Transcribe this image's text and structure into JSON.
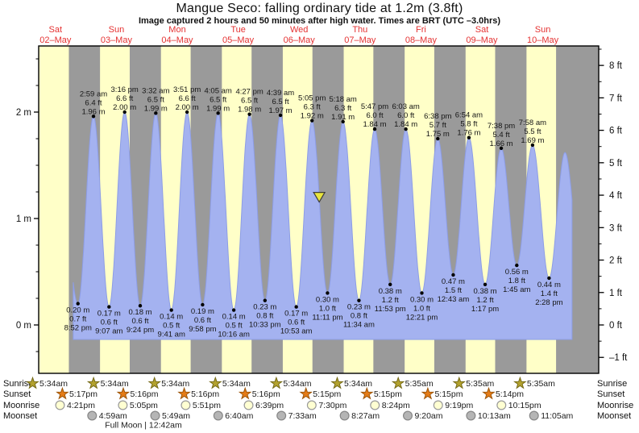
{
  "title": "Mangue Seco: falling  ordinary tide at 1.2m (3.8ft)",
  "subtitle": "Image captured 2 hours and 50 minutes after high water. Times are BRT (UTC –3.0hrs)",
  "colors": {
    "day_band": "#ffffc8",
    "night_band": "#9a9a9a",
    "tide_fill": "#a4b2f0",
    "tide_edge": "#8d9de6",
    "date_red": "#e53232",
    "sunrise_star": "#b3a22e",
    "sunrise_star_edge": "#756a18",
    "sunset_star": "#e57c17",
    "sunset_star_edge": "#9c5509",
    "moonrise_fill": "#ffffd2",
    "moonrise_edge": "#9a9a9a",
    "moonset_fill": "#b5b5b5",
    "moonset_edge": "#878787",
    "marker_fill": "#e9e53c",
    "marker_edge": "#3c3c3c"
  },
  "chart_data": {
    "type": "area",
    "title": "Mangue Seco: falling  ordinary tide at 1.2m (3.8ft)",
    "ylabel_left": "meters",
    "ylabel_right": "feet",
    "ylim_m": [
      -0.45,
      2.62
    ],
    "grid": false,
    "y_axis_m": [
      {
        "v": 0,
        "label": "0 m"
      },
      {
        "v": 1,
        "label": "1 m"
      },
      {
        "v": 2,
        "label": "2 m"
      }
    ],
    "y_axis_ft": [
      {
        "v": -1,
        "label": "–1 ft"
      },
      {
        "v": 0,
        "label": "0 ft"
      },
      {
        "v": 1,
        "label": "1 ft"
      },
      {
        "v": 2,
        "label": "2 ft"
      },
      {
        "v": 3,
        "label": "3 ft"
      },
      {
        "v": 4,
        "label": "4 ft"
      },
      {
        "v": 5,
        "label": "5 ft"
      },
      {
        "v": 6,
        "label": "6 ft"
      },
      {
        "v": 7,
        "label": "7 ft"
      },
      {
        "v": 8,
        "label": "8 ft"
      }
    ],
    "days": [
      {
        "dow": "Sat",
        "date": "02–May",
        "sr": 5.567,
        "ss": 17.283
      },
      {
        "dow": "Sun",
        "date": "03–May",
        "sr": 5.567,
        "ss": 17.267
      },
      {
        "dow": "Mon",
        "date": "04–May",
        "sr": 5.567,
        "ss": 17.267
      },
      {
        "dow": "Tue",
        "date": "05–May",
        "sr": 5.567,
        "ss": 17.267
      },
      {
        "dow": "Wed",
        "date": "06–May",
        "sr": 5.567,
        "ss": 17.25
      },
      {
        "dow": "Thu",
        "date": "07–May",
        "sr": 5.567,
        "ss": 17.25
      },
      {
        "dow": "Fri",
        "date": "08–May",
        "sr": 5.583,
        "ss": 17.25
      },
      {
        "dow": "Sat",
        "date": "09–May",
        "sr": 5.583,
        "ss": 17.233
      },
      {
        "dow": "Sun",
        "date": "10–May",
        "sr": 5.583,
        "ss": 17.233
      }
    ],
    "tides": [
      {
        "kind": "low",
        "day": 0,
        "hour": 20.867,
        "time": "8:52 pm",
        "ft": "0.7 ft",
        "m": "0.20 m",
        "v": 0.2
      },
      {
        "kind": "high",
        "day": 1,
        "hour": 2.983,
        "time": "2:59 am",
        "ft": "6.4 ft",
        "m": "1.96 m",
        "v": 1.96
      },
      {
        "kind": "low",
        "day": 1,
        "hour": 9.117,
        "time": "9:07 am",
        "ft": "0.6 ft",
        "m": "0.17 m",
        "v": 0.17
      },
      {
        "kind": "high",
        "day": 1,
        "hour": 15.267,
        "time": "3:16 pm",
        "ft": "6.6 ft",
        "m": "2.00 m",
        "v": 2.0
      },
      {
        "kind": "low",
        "day": 1,
        "hour": 21.4,
        "time": "9:24 pm",
        "ft": "0.6 ft",
        "m": "0.18 m",
        "v": 0.18
      },
      {
        "kind": "high",
        "day": 2,
        "hour": 3.533,
        "time": "3:32 am",
        "ft": "6.5 ft",
        "m": "1.99 m",
        "v": 1.99
      },
      {
        "kind": "low",
        "day": 2,
        "hour": 9.683,
        "time": "9:41 am",
        "ft": "0.5 ft",
        "m": "0.14 m",
        "v": 0.14
      },
      {
        "kind": "high",
        "day": 2,
        "hour": 15.85,
        "time": "3:51 pm",
        "ft": "6.6 ft",
        "m": "2.00 m",
        "v": 2.0
      },
      {
        "kind": "low",
        "day": 2,
        "hour": 21.967,
        "time": "9:58 pm",
        "ft": "0.6 ft",
        "m": "0.19 m",
        "v": 0.19
      },
      {
        "kind": "high",
        "day": 3,
        "hour": 4.083,
        "time": "4:05 am",
        "ft": "6.5 ft",
        "m": "1.99 m",
        "v": 1.99
      },
      {
        "kind": "low",
        "day": 3,
        "hour": 10.267,
        "time": "10:16 am",
        "ft": "0.5 ft",
        "m": "0.14 m",
        "v": 0.14
      },
      {
        "kind": "high",
        "day": 3,
        "hour": 16.45,
        "time": "4:27 pm",
        "ft": "6.5 ft",
        "m": "1.98 m",
        "v": 1.98
      },
      {
        "kind": "low",
        "day": 3,
        "hour": 22.55,
        "time": "10:33 pm",
        "ft": "0.8 ft",
        "m": "0.23 m",
        "v": 0.23
      },
      {
        "kind": "high",
        "day": 4,
        "hour": 4.65,
        "time": "4:39 am",
        "ft": "6.5 ft",
        "m": "1.97 m",
        "v": 1.97
      },
      {
        "kind": "low",
        "day": 4,
        "hour": 10.883,
        "time": "10:53 am",
        "ft": "0.6 ft",
        "m": "0.17 m",
        "v": 0.17
      },
      {
        "kind": "high",
        "day": 4,
        "hour": 17.083,
        "time": "5:05 pm",
        "ft": "6.3 ft",
        "m": "1.92 m",
        "v": 1.92
      },
      {
        "kind": "low",
        "day": 4,
        "hour": 23.183,
        "time": "11:11 pm",
        "ft": "1.0 ft",
        "m": "0.30 m",
        "v": 0.3
      },
      {
        "kind": "high",
        "day": 5,
        "hour": 5.3,
        "time": "5:18 am",
        "ft": "6.3 ft",
        "m": "1.91 m",
        "v": 1.91
      },
      {
        "kind": "low",
        "day": 5,
        "hour": 11.567,
        "time": "11:34 am",
        "ft": "0.8 ft",
        "m": "0.23 m",
        "v": 0.23
      },
      {
        "kind": "high",
        "day": 5,
        "hour": 17.783,
        "time": "5:47 pm",
        "ft": "6.0 ft",
        "m": "1.84 m",
        "v": 1.84
      },
      {
        "kind": "low",
        "day": 5,
        "hour": 23.883,
        "time": "11:53 pm",
        "ft": "1.2 ft",
        "m": "0.38 m",
        "v": 0.38
      },
      {
        "kind": "high",
        "day": 6,
        "hour": 6.05,
        "time": "6:03 am",
        "ft": "6.0 ft",
        "m": "1.84 m",
        "v": 1.84
      },
      {
        "kind": "low",
        "day": 6,
        "hour": 12.35,
        "time": "12:21 pm",
        "ft": "1.0 ft",
        "m": "0.30 m",
        "v": 0.3
      },
      {
        "kind": "high",
        "day": 6,
        "hour": 18.633,
        "time": "6:38 pm",
        "ft": "5.7 ft",
        "m": "1.75 m",
        "v": 1.75
      },
      {
        "kind": "low",
        "day": 7,
        "hour": 0.717,
        "time": "12:43 am",
        "ft": "1.5 ft",
        "m": "0.47 m",
        "v": 0.47
      },
      {
        "kind": "high",
        "day": 7,
        "hour": 6.9,
        "time": "6:54 am",
        "ft": "5.8 ft",
        "m": "1.76 m",
        "v": 1.76
      },
      {
        "kind": "low",
        "day": 7,
        "hour": 13.283,
        "time": "1:17 pm",
        "ft": "1.2 ft",
        "m": "0.38 m",
        "v": 0.38
      },
      {
        "kind": "high",
        "day": 7,
        "hour": 19.633,
        "time": "7:38 pm",
        "ft": "5.4 ft",
        "m": "1.66 m",
        "v": 1.66
      },
      {
        "kind": "low",
        "day": 8,
        "hour": 1.75,
        "time": "1:45 am",
        "ft": "1.8 ft",
        "m": "0.56 m",
        "v": 0.56
      },
      {
        "kind": "high",
        "day": 8,
        "hour": 7.967,
        "time": "7:58 am",
        "ft": "5.5 ft",
        "m": "1.69 m",
        "v": 1.69
      },
      {
        "kind": "low",
        "day": 8,
        "hour": 14.467,
        "time": "2:28 pm",
        "ft": "1.4 ft",
        "m": "0.44 m",
        "v": 0.44
      }
    ],
    "current_marker": {
      "day": 4,
      "hour": 19.917,
      "level_m": 1.2
    }
  },
  "astro": {
    "row_labels": [
      "Sunrise",
      "Sunset",
      "Moonrise",
      "Moonset"
    ],
    "sunrise": [
      {
        "day": 0,
        "hour": 5.567,
        "label": "5:34am"
      },
      {
        "day": 1,
        "hour": 5.567,
        "label": "5:34am"
      },
      {
        "day": 2,
        "hour": 5.567,
        "label": "5:34am"
      },
      {
        "day": 3,
        "hour": 5.567,
        "label": "5:34am"
      },
      {
        "day": 4,
        "hour": 5.567,
        "label": "5:34am"
      },
      {
        "day": 5,
        "hour": 5.567,
        "label": "5:34am"
      },
      {
        "day": 6,
        "hour": 5.583,
        "label": "5:35am"
      },
      {
        "day": 7,
        "hour": 5.583,
        "label": "5:35am"
      },
      {
        "day": 8,
        "hour": 5.583,
        "label": "5:35am"
      }
    ],
    "sunset": [
      {
        "day": 0,
        "hour": 17.283,
        "label": "5:17pm"
      },
      {
        "day": 1,
        "hour": 17.267,
        "label": "5:16pm"
      },
      {
        "day": 2,
        "hour": 17.267,
        "label": "5:16pm"
      },
      {
        "day": 3,
        "hour": 17.267,
        "label": "5:16pm"
      },
      {
        "day": 4,
        "hour": 17.25,
        "label": "5:15pm"
      },
      {
        "day": 5,
        "hour": 17.25,
        "label": "5:15pm"
      },
      {
        "day": 6,
        "hour": 17.25,
        "label": "5:15pm"
      },
      {
        "day": 7,
        "hour": 17.233,
        "label": "5:14pm"
      }
    ],
    "moonrise": [
      {
        "day": 0,
        "hour": 16.35,
        "label": "4:21pm"
      },
      {
        "day": 1,
        "hour": 17.083,
        "label": "5:05pm"
      },
      {
        "day": 2,
        "hour": 17.85,
        "label": "5:51pm"
      },
      {
        "day": 3,
        "hour": 18.65,
        "label": "6:39pm"
      },
      {
        "day": 4,
        "hour": 19.5,
        "label": "7:30pm"
      },
      {
        "day": 5,
        "hour": 20.4,
        "label": "8:24pm"
      },
      {
        "day": 6,
        "hour": 21.317,
        "label": "9:19pm"
      },
      {
        "day": 7,
        "hour": 22.25,
        "label": "10:15pm"
      }
    ],
    "moonset": [
      {
        "day": 1,
        "hour": 4.983,
        "label": "4:59am"
      },
      {
        "day": 2,
        "hour": 5.817,
        "label": "5:49am"
      },
      {
        "day": 3,
        "hour": 6.667,
        "label": "6:40am"
      },
      {
        "day": 4,
        "hour": 7.55,
        "label": "7:33am"
      },
      {
        "day": 5,
        "hour": 8.45,
        "label": "8:27am"
      },
      {
        "day": 6,
        "hour": 9.333,
        "label": "9:20am"
      },
      {
        "day": 7,
        "hour": 10.217,
        "label": "10:13am"
      },
      {
        "day": 8,
        "hour": 11.083,
        "label": "11:05am"
      }
    ],
    "moon_phase_note": "Full Moon | 12:42am"
  }
}
